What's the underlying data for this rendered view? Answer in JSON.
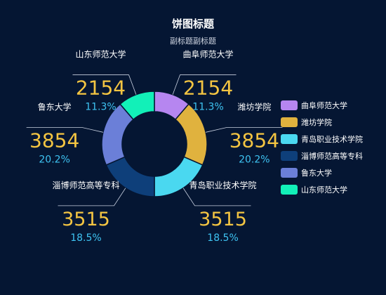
{
  "chart_data": {
    "type": "pie",
    "title": "饼图标题",
    "subtitle": "副标题副标题",
    "slices": [
      {
        "name": "曲阜师范大学",
        "value": 2154,
        "percent": "11.3%",
        "color": "#b686f0"
      },
      {
        "name": "潍坊学院",
        "value": 3854,
        "percent": "20.2%",
        "color": "#e0b23e"
      },
      {
        "name": "青岛职业技术学院",
        "value": 3515,
        "percent": "18.5%",
        "color": "#4ad8f0"
      },
      {
        "name": "淄博师范高等专科",
        "value": 3515,
        "percent": "18.5%",
        "color": "#0e3f7a"
      },
      {
        "name": "鲁东大学",
        "value": 3854,
        "percent": "20.2%",
        "color": "#6b7fd8"
      },
      {
        "name": "山东师范大学",
        "value": 2154,
        "percent": "11.3%",
        "color": "#12f0b8"
      }
    ],
    "legend_position": "right",
    "donut": true
  },
  "colors": {
    "background": "#051633",
    "value_text": "#f4c542",
    "percent_text": "#3ec3f2",
    "label_text": "#ffffff",
    "leader_line": "#c8d0e0"
  }
}
